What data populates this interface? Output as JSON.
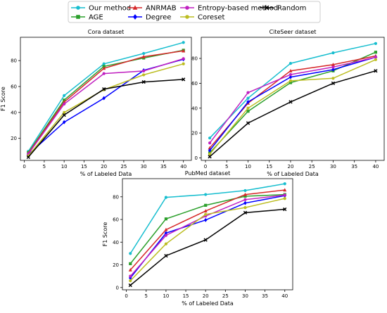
{
  "chart_data": [
    {
      "type": "line",
      "title": "Cora dataset",
      "xlabel": "% of Labeled Data",
      "ylabel": "F1 Score",
      "x": [
        1,
        10,
        20,
        30,
        40
      ],
      "xlim": [
        -1,
        42
      ],
      "ylim": [
        3,
        98
      ],
      "xticks": [
        0,
        5,
        10,
        15,
        20,
        25,
        30,
        35,
        40
      ],
      "yticks": [
        20,
        40,
        60,
        80
      ],
      "grid": false,
      "series": [
        {
          "name": "Our method",
          "color": "#17becf",
          "marker": "circle",
          "values": [
            10.0,
            53.0,
            77.5,
            85.5,
            94.0
          ]
        },
        {
          "name": "AGE",
          "color": "#2ca02c",
          "marker": "square",
          "values": [
            9.0,
            49.5,
            75.5,
            82.0,
            88.0
          ]
        },
        {
          "name": "ANRMAB",
          "color": "#d62728",
          "marker": "triangle",
          "values": [
            8.5,
            48.0,
            74.0,
            83.0,
            87.5
          ]
        },
        {
          "name": "Degree",
          "color": "#0000ff",
          "marker": "diamond",
          "values": [
            7.5,
            32.5,
            51.0,
            72.5,
            81.0
          ]
        },
        {
          "name": "Entropy-based method",
          "color": "#c020c0",
          "marker": "circle",
          "values": [
            8.0,
            46.5,
            70.0,
            72.0,
            81.5
          ]
        },
        {
          "name": "Coreset",
          "color": "#bcbd22",
          "marker": "circle",
          "values": [
            6.5,
            40.0,
            57.5,
            69.0,
            77.5
          ]
        },
        {
          "name": "Random",
          "color": "#000000",
          "marker": "x",
          "values": [
            5.5,
            38.0,
            58.0,
            63.5,
            65.5
          ]
        }
      ]
    },
    {
      "type": "line",
      "title": "CiteSeer dataset",
      "xlabel": "% of Labeled Data",
      "ylabel": "",
      "x": [
        1,
        10,
        20,
        30,
        40
      ],
      "xlim": [
        -1,
        42
      ],
      "ylim": [
        -2,
        97
      ],
      "xticks": [
        0,
        5,
        10,
        15,
        20,
        25,
        30,
        35,
        40
      ],
      "yticks": [
        0,
        20,
        40,
        60,
        80
      ],
      "grid": false,
      "series": [
        {
          "name": "Our method",
          "color": "#17becf",
          "marker": "circle",
          "values": [
            16.0,
            48.0,
            76.0,
            84.5,
            92.0
          ]
        },
        {
          "name": "AGE",
          "color": "#2ca02c",
          "marker": "square",
          "values": [
            4.0,
            37.5,
            60.5,
            70.0,
            85.0
          ]
        },
        {
          "name": "ANRMAB",
          "color": "#d62728",
          "marker": "triangle",
          "values": [
            8.0,
            44.0,
            70.0,
            75.0,
            82.0
          ]
        },
        {
          "name": "Degree",
          "color": "#0000ff",
          "marker": "diamond",
          "values": [
            6.0,
            45.0,
            65.0,
            71.0,
            81.0
          ]
        },
        {
          "name": "Entropy-based method",
          "color": "#c020c0",
          "marker": "circle",
          "values": [
            12.0,
            52.5,
            67.0,
            73.0,
            81.0
          ]
        },
        {
          "name": "Coreset",
          "color": "#bcbd22",
          "marker": "circle",
          "values": [
            3.0,
            40.0,
            62.0,
            64.0,
            79.0
          ]
        },
        {
          "name": "Random",
          "color": "#000000",
          "marker": "x",
          "values": [
            1.0,
            28.0,
            45.0,
            60.0,
            70.0
          ]
        }
      ]
    },
    {
      "type": "line",
      "title": "PubMed dataset",
      "xlabel": "% of Labeled Data",
      "ylabel": "F1 Score",
      "x": [
        1,
        10,
        20,
        30,
        40
      ],
      "xlim": [
        -1,
        42
      ],
      "ylim": [
        -2,
        96
      ],
      "xticks": [
        0,
        5,
        10,
        15,
        20,
        25,
        30,
        35,
        40
      ],
      "yticks": [
        0,
        20,
        40,
        60,
        80
      ],
      "grid": false,
      "series": [
        {
          "name": "Our method",
          "color": "#17becf",
          "marker": "circle",
          "values": [
            30.0,
            79.5,
            82.0,
            85.5,
            91.5
          ]
        },
        {
          "name": "AGE",
          "color": "#2ca02c",
          "marker": "square",
          "values": [
            21.0,
            60.5,
            72.5,
            80.5,
            82.0
          ]
        },
        {
          "name": "ANRMAB",
          "color": "#d62728",
          "marker": "triangle",
          "values": [
            15.5,
            51.0,
            67.5,
            82.0,
            86.0
          ]
        },
        {
          "name": "Degree",
          "color": "#0000ff",
          "marker": "diamond",
          "values": [
            8.5,
            48.0,
            59.5,
            74.5,
            81.0
          ]
        },
        {
          "name": "Entropy-based method",
          "color": "#c020c0",
          "marker": "circle",
          "values": [
            10.0,
            46.0,
            63.0,
            77.5,
            81.5
          ]
        },
        {
          "name": "Coreset",
          "color": "#bcbd22",
          "marker": "circle",
          "values": [
            6.0,
            38.5,
            64.5,
            70.5,
            78.5
          ]
        },
        {
          "name": "Random",
          "color": "#000000",
          "marker": "x",
          "values": [
            2.0,
            28.0,
            42.0,
            66.0,
            69.0
          ]
        }
      ]
    }
  ],
  "legend": {
    "placement": "top-center",
    "entries": [
      {
        "label": "Our method",
        "color": "#17becf",
        "marker": "circle"
      },
      {
        "label": "AGE",
        "color": "#2ca02c",
        "marker": "square"
      },
      {
        "label": "ANRMAB",
        "color": "#d62728",
        "marker": "triangle"
      },
      {
        "label": "Degree",
        "color": "#0000ff",
        "marker": "diamond"
      },
      {
        "label": "Entropy-based method",
        "color": "#c020c0",
        "marker": "circle"
      },
      {
        "label": "Coreset",
        "color": "#bcbd22",
        "marker": "circle"
      },
      {
        "label": "Random",
        "color": "#000000",
        "marker": "x"
      }
    ]
  }
}
